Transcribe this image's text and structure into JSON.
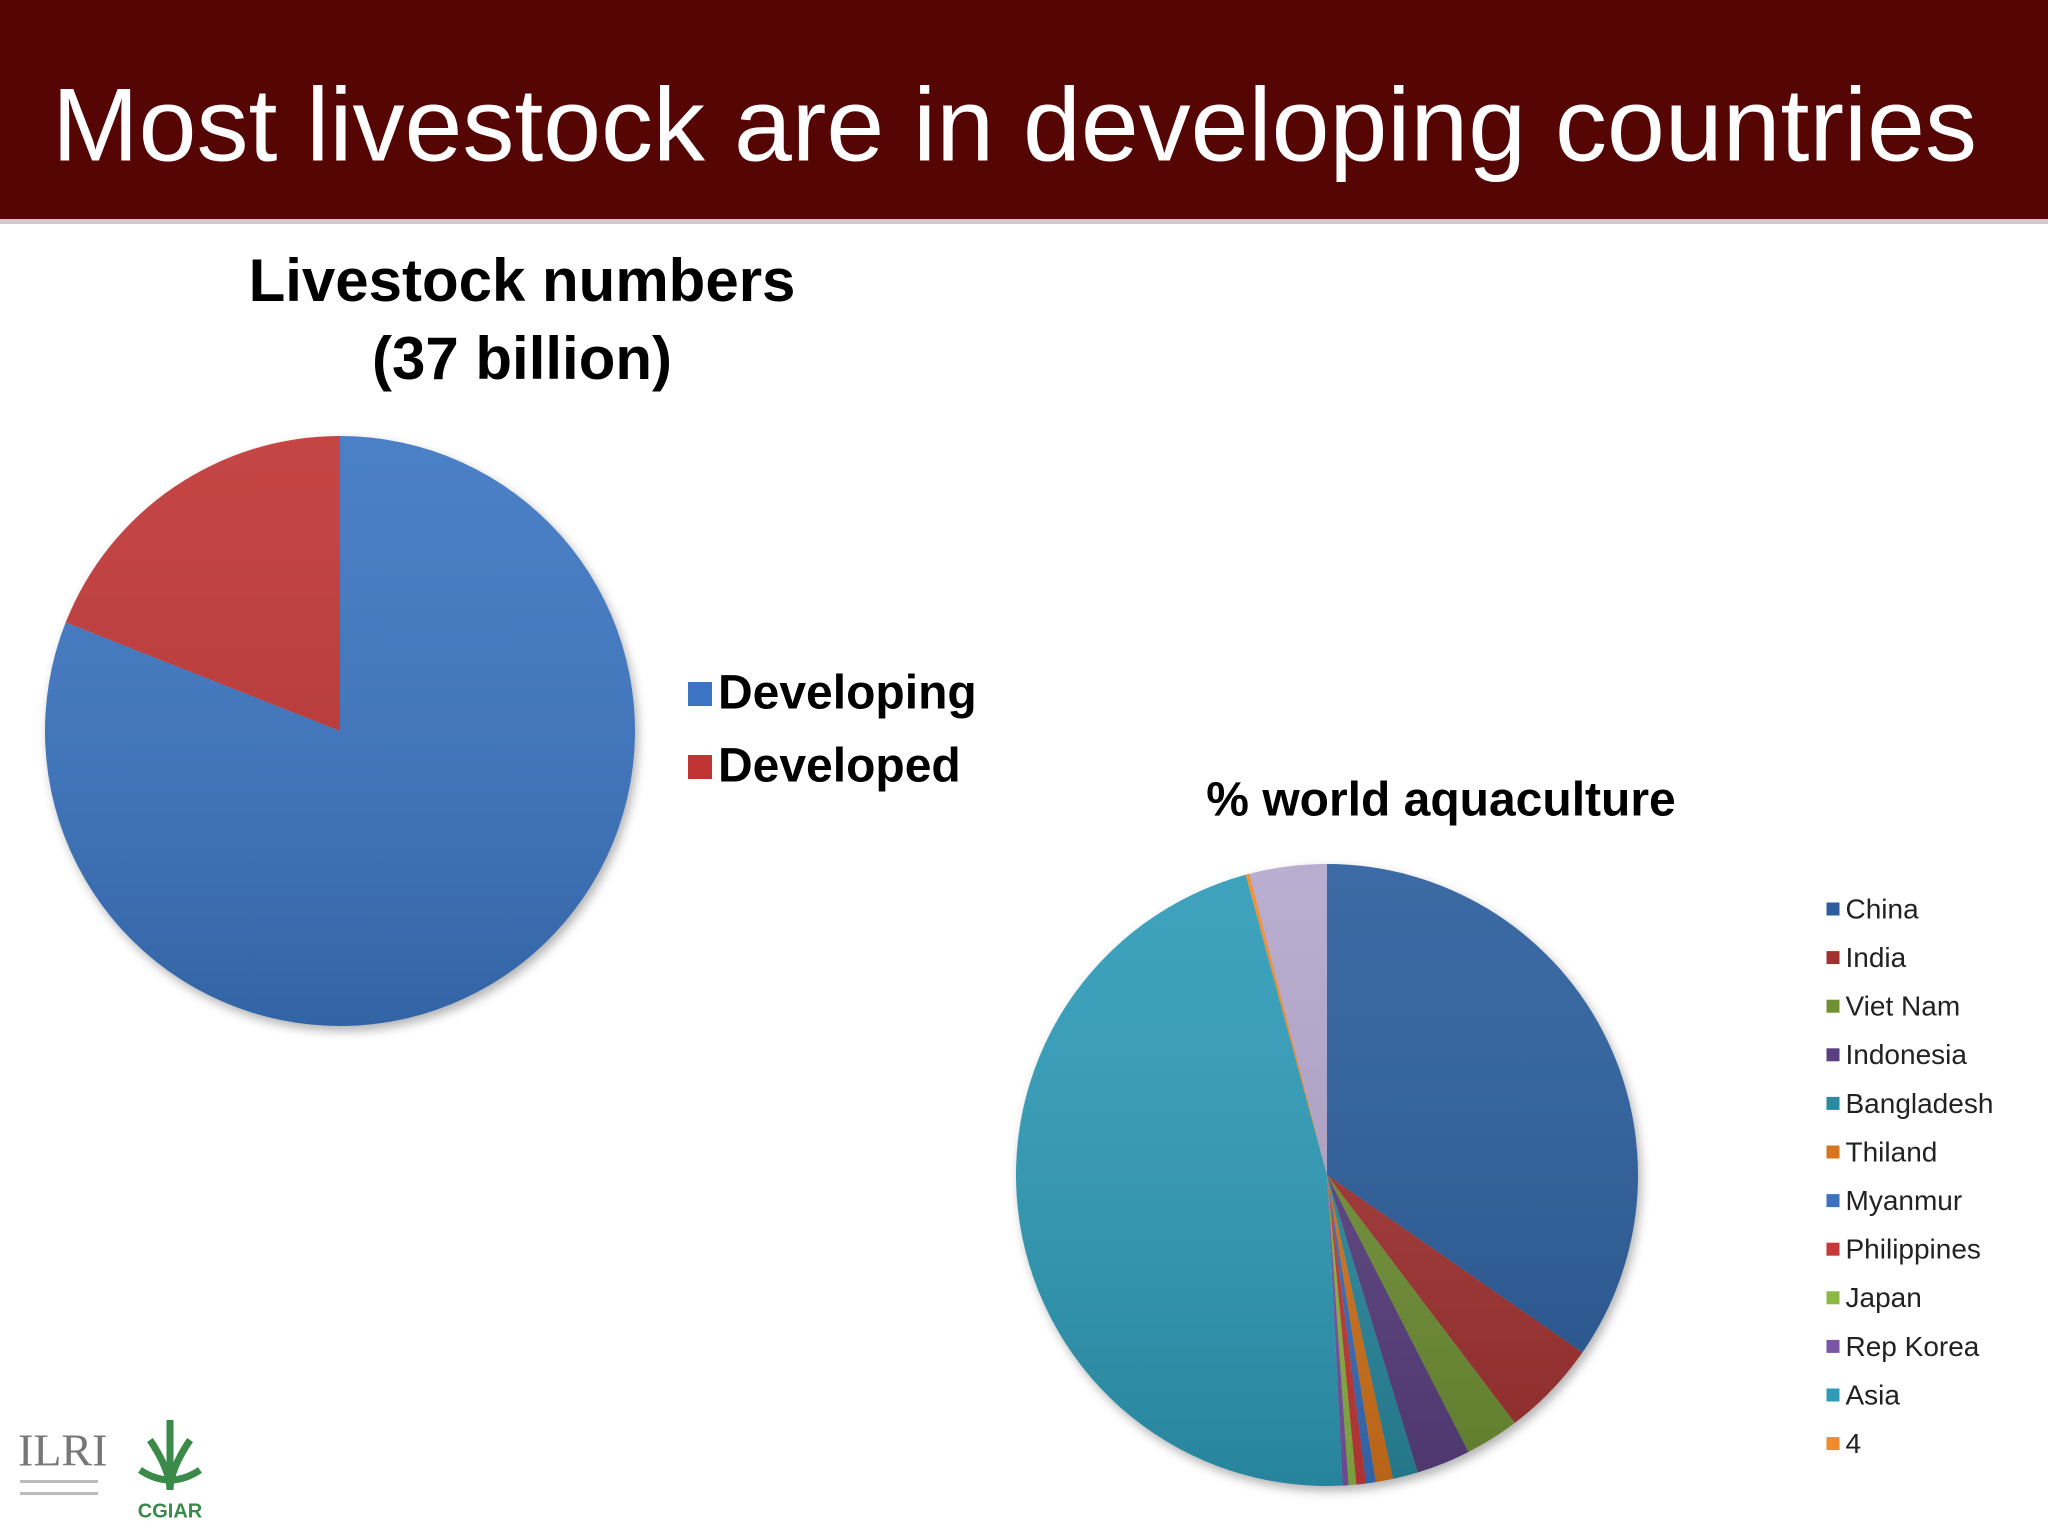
{
  "header": {
    "title": "Most livestock are in developing countries"
  },
  "logos": [
    "ILRI",
    "CGIAR"
  ],
  "chart_data": [
    {
      "type": "pie",
      "title": [
        "Livestock numbers",
        "(37 billion)"
      ],
      "categories": [
        "Developing",
        "Developed"
      ],
      "values": [
        81,
        19
      ],
      "colors": [
        "#3b74c2",
        "#c03534"
      ]
    },
    {
      "type": "pie",
      "title": "% world aquaculture",
      "categories": [
        "China",
        "India",
        "Viet Nam",
        "Indonesia",
        "Bangladesh",
        "Thiland",
        "Myanmur",
        "Philippines",
        "Japan",
        "Rep Korea",
        "Asia",
        "4",
        null
      ],
      "values": [
        34.6,
        5,
        2.8,
        2.8,
        1.3,
        0.9,
        0.5,
        0.5,
        0.4,
        0.3,
        46.5,
        0.2,
        4.0
      ],
      "colors": [
        "#2c5d9c",
        "#a33030",
        "#6f9134",
        "#5a3f80",
        "#2a8aa0",
        "#d6741f",
        "#3a72bf",
        "#c73a3a",
        "#8db845",
        "#7a56a6",
        "#2f9bb8",
        "#f08a2a",
        "#b3a6cc"
      ]
    }
  ]
}
